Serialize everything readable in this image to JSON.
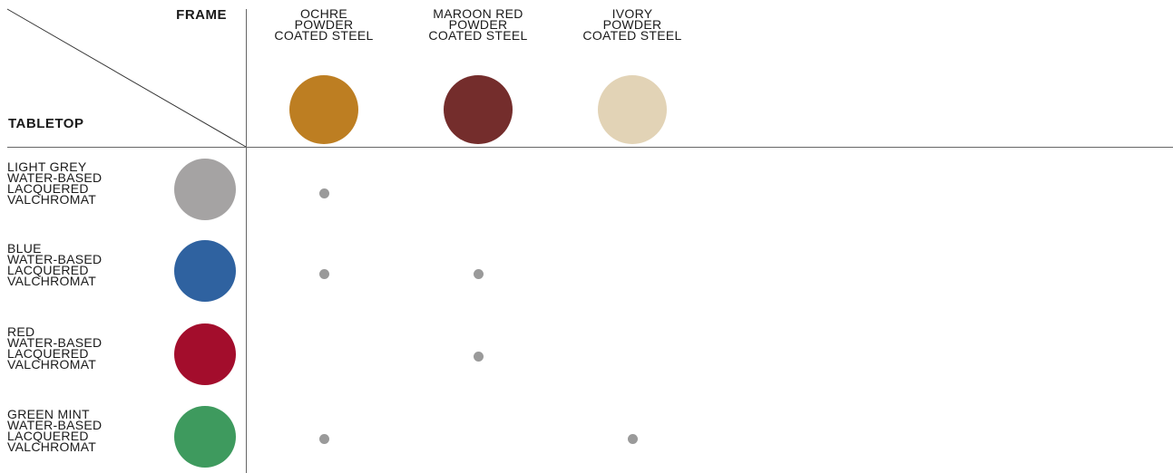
{
  "header": {
    "frame_label": "FRAME",
    "tabletop_label": "TABLETOP"
  },
  "columns": [
    {
      "lines": [
        "OCHRE",
        "POWDER",
        "COATED STEEL"
      ],
      "color": "#bd7e22"
    },
    {
      "lines": [
        "MAROON RED",
        "POWDER",
        "COATED STEEL"
      ],
      "color": "#742d2c"
    },
    {
      "lines": [
        "IVORY",
        "POWDER",
        "COATED STEEL"
      ],
      "color": "#e2d3b6"
    }
  ],
  "rows": [
    {
      "lines": [
        "LIGHT GREY",
        "WATER-BASED",
        "LACQUERED",
        "VALCHROMAT"
      ],
      "color": "#a5a3a3",
      "available": [
        true,
        false,
        false
      ]
    },
    {
      "lines": [
        "BLUE",
        "WATER-BASED",
        "LACQUERED",
        "VALCHROMAT"
      ],
      "color": "#2f62a0",
      "available": [
        true,
        true,
        false
      ]
    },
    {
      "lines": [
        "RED",
        "WATER-BASED",
        "LACQUERED",
        "VALCHROMAT"
      ],
      "color": "#a30d2c",
      "available": [
        false,
        true,
        false
      ]
    },
    {
      "lines": [
        "GREEN MINT",
        "WATER-BASED",
        "LACQUERED",
        "VALCHROMAT"
      ],
      "color": "#3e9a5e",
      "available": [
        true,
        false,
        true
      ]
    }
  ],
  "colors": {
    "availability_dot": "#9a9a9a",
    "grid_line": "#666666"
  }
}
